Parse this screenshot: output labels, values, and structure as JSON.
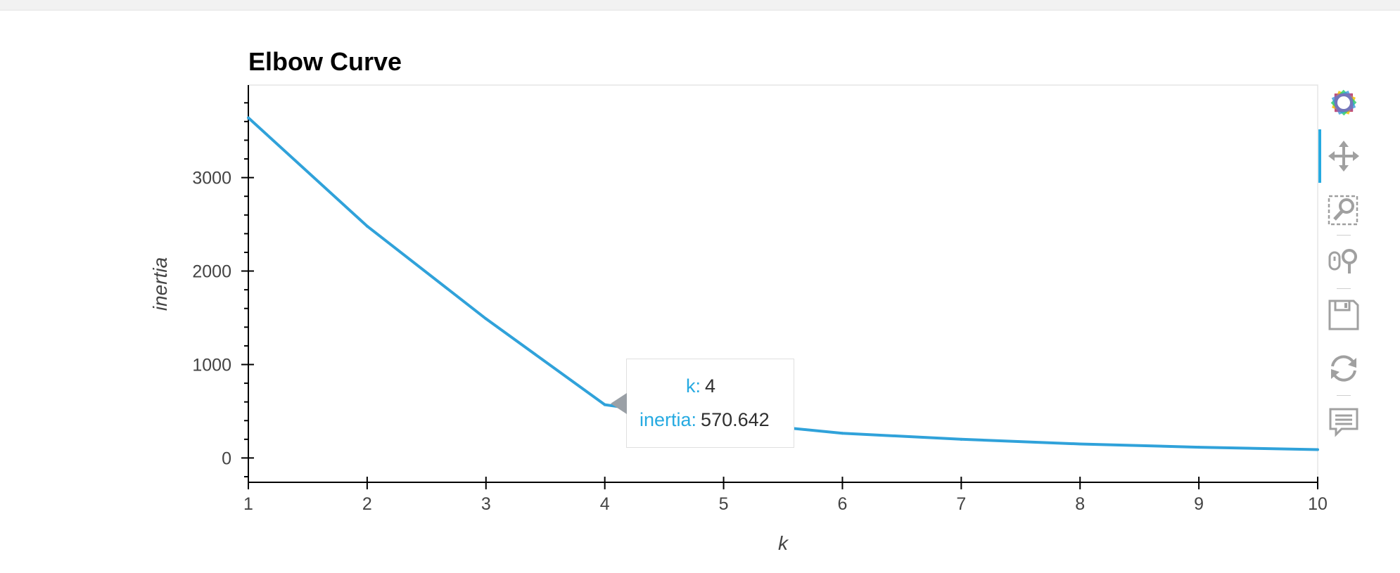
{
  "chart_data": {
    "type": "line",
    "title": "Elbow Curve",
    "xlabel": "k",
    "ylabel": "inertia",
    "x": [
      1,
      2,
      3,
      4,
      5,
      6,
      7,
      8,
      9,
      10
    ],
    "series": [
      {
        "values": [
          3640,
          2480,
          1490,
          570.642,
          390,
          265,
          200,
          150,
          115,
          90
        ]
      }
    ],
    "xlim": [
      1,
      10
    ],
    "ylim": [
      -260,
      3990
    ],
    "xticks": [
      1,
      2,
      3,
      4,
      5,
      6,
      7,
      8,
      9,
      10
    ],
    "yticks": [
      0,
      1000,
      2000,
      3000
    ],
    "ytick_labels": [
      "0",
      "1000",
      "2000",
      "3000"
    ],
    "grid": false,
    "line_color": "#30a2da"
  },
  "tooltip": {
    "k_label": "k:",
    "k_value": "4",
    "inertia_label": "inertia:",
    "inertia_value": "570.642"
  },
  "toolbar": {
    "tools": [
      "bokeh-logo-icon",
      "pan-icon",
      "box-zoom-icon",
      "wheel-zoom-icon",
      "save-icon",
      "reset-icon",
      "hover-icon"
    ]
  }
}
